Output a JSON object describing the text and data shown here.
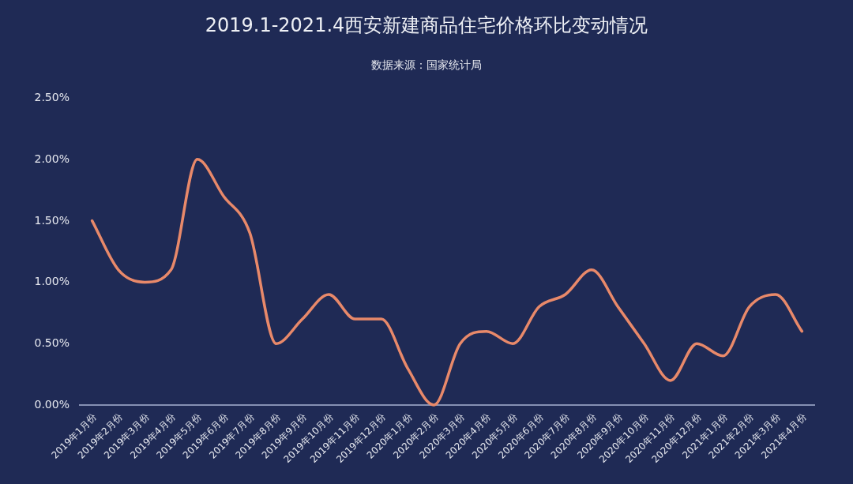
{
  "chart_data": {
    "type": "line",
    "title": "2019.1-2021.4西安新建商品住宅价格环比变动情况",
    "subtitle": "数据来源：国家统计局",
    "categories": [
      "2019年1月份",
      "2019年2月份",
      "2019年3月份",
      "2019年4月份",
      "2019年5月份",
      "2019年6月份",
      "2019年7月份",
      "2019年8月份",
      "2019年9月份",
      "2019年10月份",
      "2019年11月份",
      "2019年12月份",
      "2020年1月份",
      "2020年2月份",
      "2020年3月份",
      "2020年4月份",
      "2020年5月份",
      "2020年6月份",
      "2020年7月份",
      "2020年8月份",
      "2020年9月份",
      "2020年10月份",
      "2020年11月份",
      "2020年12月份",
      "2021年1月份",
      "2021年2月份",
      "2021年3月份",
      "2021年4月份"
    ],
    "series": [
      {
        "color": "#e8896a",
        "values": [
          1.5,
          1.1,
          1.0,
          1.1,
          2.0,
          1.7,
          1.4,
          0.5,
          0.7,
          0.9,
          0.7,
          0.7,
          0.3,
          0.0,
          0.5,
          0.6,
          0.5,
          0.8,
          0.9,
          1.1,
          0.8,
          0.5,
          0.2,
          0.5,
          0.4,
          0.8,
          0.9,
          0.6
        ]
      }
    ],
    "ylim": [
      0,
      2.5
    ],
    "yticks": [
      {
        "value": 0,
        "label": "0.00%"
      },
      {
        "value": 0.5,
        "label": "0.50%"
      },
      {
        "value": 1,
        "label": "1.00%"
      },
      {
        "value": 1.5,
        "label": "1.50%"
      },
      {
        "value": 2,
        "label": "2.00%"
      },
      {
        "value": 2.5,
        "label": "2.50%"
      }
    ],
    "grid": false
  }
}
